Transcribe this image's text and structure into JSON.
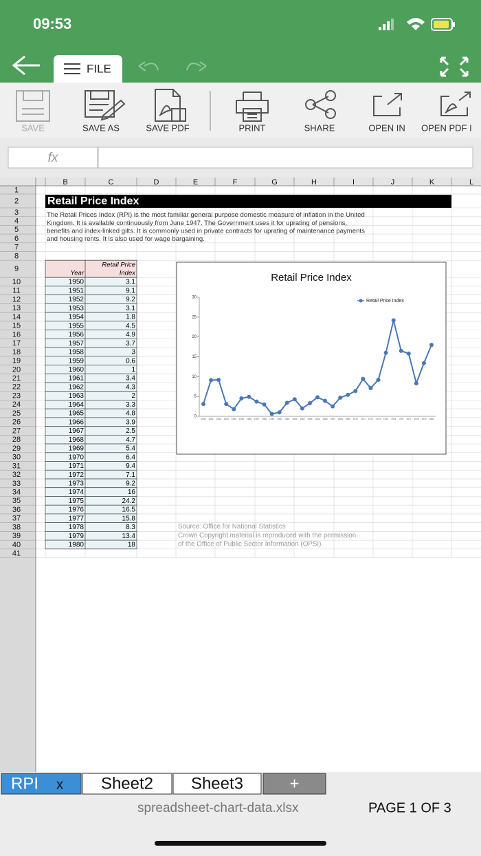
{
  "status_bar": {
    "time": "09:53"
  },
  "top_bar": {
    "tab": "FILE"
  },
  "toolbar": {
    "buttons": [
      "SAVE",
      "SAVE AS",
      "SAVE PDF",
      "PRINT",
      "SHARE",
      "OPEN IN",
      "OPEN PDF I"
    ]
  },
  "formula_bar": {
    "name_box": "fx"
  },
  "sheet": {
    "columns": [
      "B",
      "C",
      "D",
      "E",
      "F",
      "G",
      "H",
      "I",
      "J",
      "K",
      "L"
    ],
    "row_numbers": [
      1,
      2,
      3,
      4,
      5,
      6,
      7,
      8,
      9,
      10,
      11,
      12,
      13,
      14,
      15,
      16,
      17,
      18,
      19,
      20,
      21,
      22,
      23,
      24,
      25,
      26,
      27,
      28,
      29,
      30,
      31,
      32,
      33,
      34,
      35,
      36,
      37,
      38,
      39,
      40,
      41
    ],
    "title": "Retail Price Index",
    "description": [
      "The Retail Prices Index (RPI) is the most familiar general purpose domestic measure of inflation in the United",
      "Kingdom. It is available continuously from June 1947. The Government uses it for uprating of pensions,",
      "benefits and index-linked gilts. It is commonly used in private contracts for uprating of maintenance payments",
      "and housing rents. It is also used for wage bargaining."
    ],
    "table_headers": {
      "year": "Year",
      "index": [
        "Retail Price",
        "Index"
      ]
    },
    "source": [
      "Source: Office for National Statistics",
      "Crown Copyright material is reproduced with the permission",
      "of the Office of Public Sector Information (OPSI)."
    ]
  },
  "chart_data": {
    "type": "line",
    "title": "Retail Price Index",
    "categories": [
      "1950",
      "1951",
      "1952",
      "1953",
      "1954",
      "1955",
      "1956",
      "1957",
      "1958",
      "1959",
      "1960",
      "1961",
      "1962",
      "1963",
      "1964",
      "1965",
      "1966",
      "1967",
      "1968",
      "1969",
      "1970",
      "1971",
      "1972",
      "1973",
      "1974",
      "1975",
      "1976",
      "1977",
      "1978",
      "1979",
      "1980"
    ],
    "series": [
      {
        "name": "Retail Price Index",
        "color": "#4a78b5",
        "values": [
          3.1,
          9.1,
          9.2,
          3.1,
          1.8,
          4.5,
          4.9,
          3.7,
          3,
          0.6,
          1,
          3.4,
          4.3,
          2,
          3.3,
          4.8,
          3.9,
          2.5,
          4.7,
          5.4,
          6.4,
          9.4,
          7.1,
          9.2,
          16,
          24.2,
          16.5,
          15.8,
          8.3,
          13.4,
          18
        ]
      }
    ],
    "ylim": [
      0,
      30
    ],
    "yticks": [
      0,
      5,
      10,
      15,
      20,
      25,
      30
    ],
    "legend": "upper right"
  },
  "sheet_tabs": {
    "tabs": [
      "RPI",
      "Sheet2",
      "Sheet3",
      "+"
    ],
    "close": "x"
  },
  "footer": {
    "file": "spreadsheet-chart-data.xlsx",
    "page": "PAGE 1 OF 3"
  }
}
